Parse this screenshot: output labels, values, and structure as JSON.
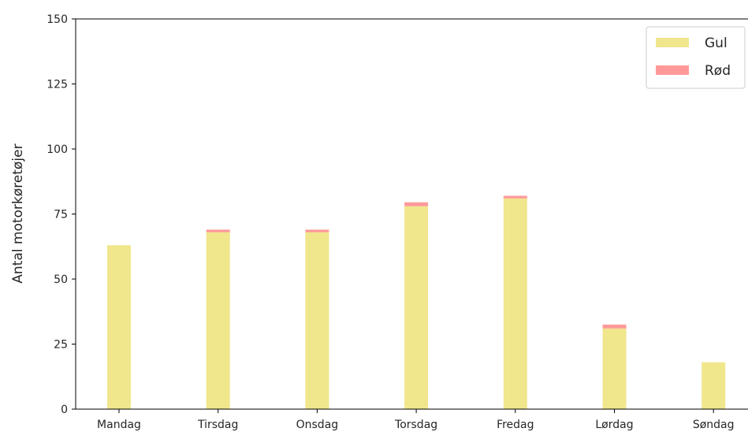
{
  "chart_data": {
    "type": "bar",
    "stacked": true,
    "title": "",
    "xlabel": "",
    "ylabel": "Antal motorkøretøjer",
    "categories": [
      "Mandag",
      "Tirsdag",
      "Onsdag",
      "Torsdag",
      "Fredag",
      "Lørdag",
      "Søndag"
    ],
    "series": [
      {
        "name": "Gul",
        "color": "#f0e68c",
        "values": [
          63,
          68,
          68,
          78,
          81,
          31,
          18
        ]
      },
      {
        "name": "Rød",
        "color": "#ff9999",
        "values": [
          0,
          1,
          1,
          1.5,
          1,
          1.5,
          0
        ]
      }
    ],
    "ylim": [
      0,
      150
    ],
    "yticks": [
      0,
      25,
      50,
      75,
      100,
      125,
      150
    ],
    "grid": false,
    "legend_position": "top-right"
  }
}
